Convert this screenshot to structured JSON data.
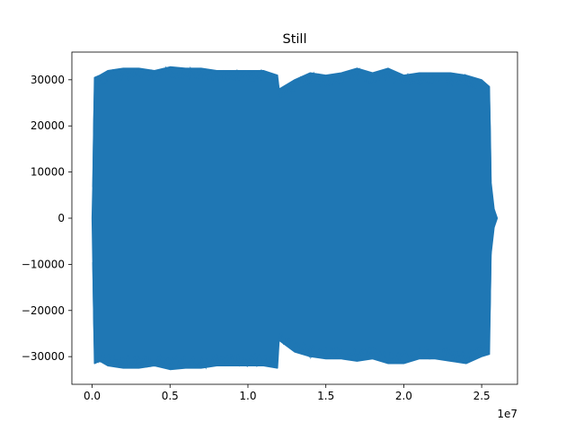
{
  "chart_data": {
    "type": "line",
    "title": "Still",
    "xlabel": "",
    "ylabel": "",
    "x_offset_label": "1e7",
    "xlim": [
      -1300000,
      27300000
    ],
    "ylim": [
      -36000,
      36000
    ],
    "x_ticks": [
      0,
      5000000,
      10000000,
      15000000,
      20000000,
      25000000
    ],
    "x_tick_labels": [
      "0.0",
      "0.5",
      "1.0",
      "1.5",
      "2.0",
      "2.5"
    ],
    "y_ticks": [
      -30000,
      -20000,
      -10000,
      0,
      10000,
      20000,
      30000
    ],
    "y_tick_labels": [
      "−30000",
      "−20000",
      "−10000",
      "0",
      "10000",
      "20000",
      "30000"
    ],
    "grid": false,
    "series": [
      {
        "color": "#1f77b4",
        "envelope": {
          "x": [
            0,
            50000,
            150000,
            500000,
            1000000,
            2000000,
            3000000,
            4000000,
            5000000,
            6000000,
            7000000,
            8000000,
            9000000,
            10000000,
            11000000,
            11900000,
            12000000,
            13000000,
            14000000,
            15000000,
            16000000,
            17000000,
            18000000,
            19000000,
            20000000,
            21000000,
            22000000,
            23000000,
            24000000,
            25000000,
            25500000,
            25600000,
            25800000,
            26000000
          ],
          "upper": [
            0,
            8000,
            30500,
            31000,
            32000,
            32500,
            32500,
            32000,
            32800,
            32500,
            32500,
            32000,
            32000,
            32000,
            32000,
            31000,
            28000,
            30000,
            31500,
            31000,
            31500,
            32500,
            31500,
            32500,
            31000,
            31500,
            31500,
            31500,
            31000,
            30000,
            28500,
            8000,
            2000,
            0
          ],
          "lower": [
            0,
            -11000,
            -31500,
            -31000,
            -32000,
            -32500,
            -32500,
            -32000,
            -32800,
            -32500,
            -32500,
            -32000,
            -32000,
            -32000,
            -32000,
            -32500,
            -26500,
            -29000,
            -30000,
            -30500,
            -30500,
            -31000,
            -30500,
            -31500,
            -31500,
            -30500,
            -30500,
            -31000,
            -31500,
            -30000,
            -29500,
            -8000,
            -2000,
            0
          ]
        }
      }
    ]
  }
}
